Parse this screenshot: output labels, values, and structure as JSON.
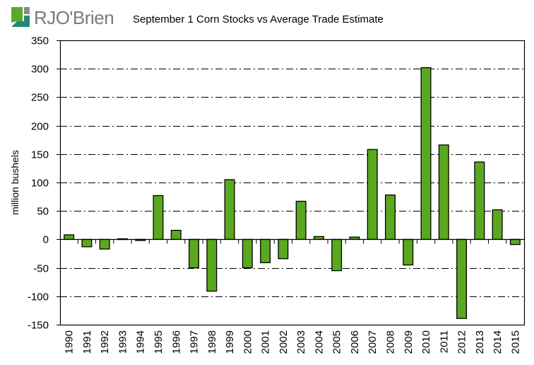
{
  "logo": {
    "text": "RJO'Brien",
    "colors": {
      "green": "#5aaa2a",
      "teal": "#1f8a77",
      "gray": "#8a8a8a"
    }
  },
  "chart_data": {
    "type": "bar",
    "title": "September 1 Corn Stocks vs Average Trade Estimate",
    "xlabel": "",
    "ylabel": "million bushels",
    "ylim": [
      -150,
      350
    ],
    "yticks": [
      -150,
      -100,
      -50,
      0,
      50,
      100,
      150,
      200,
      250,
      300,
      350
    ],
    "ytick_labels": [
      "-150",
      "-100",
      "-50",
      "0",
      "50",
      "100",
      "150",
      "200",
      "250",
      "300",
      "350"
    ],
    "grid": "horizontal dash-dot",
    "legend": "none",
    "bar_color": "#5aa820",
    "categories": [
      "1990",
      "1991",
      "1992",
      "1993",
      "1994",
      "1995",
      "1996",
      "1997",
      "1998",
      "1999",
      "2000",
      "2001",
      "2002",
      "2003",
      "2004",
      "2005",
      "2006",
      "2007",
      "2008",
      "2009",
      "2010",
      "2011",
      "2012",
      "2013",
      "2014",
      "2015"
    ],
    "values": [
      8,
      -13,
      -17,
      1,
      -2,
      77,
      16,
      -50,
      -91,
      105,
      -50,
      -41,
      -34,
      67,
      5,
      -55,
      4,
      158,
      78,
      -45,
      302,
      166,
      -139,
      136,
      52,
      -9
    ]
  }
}
